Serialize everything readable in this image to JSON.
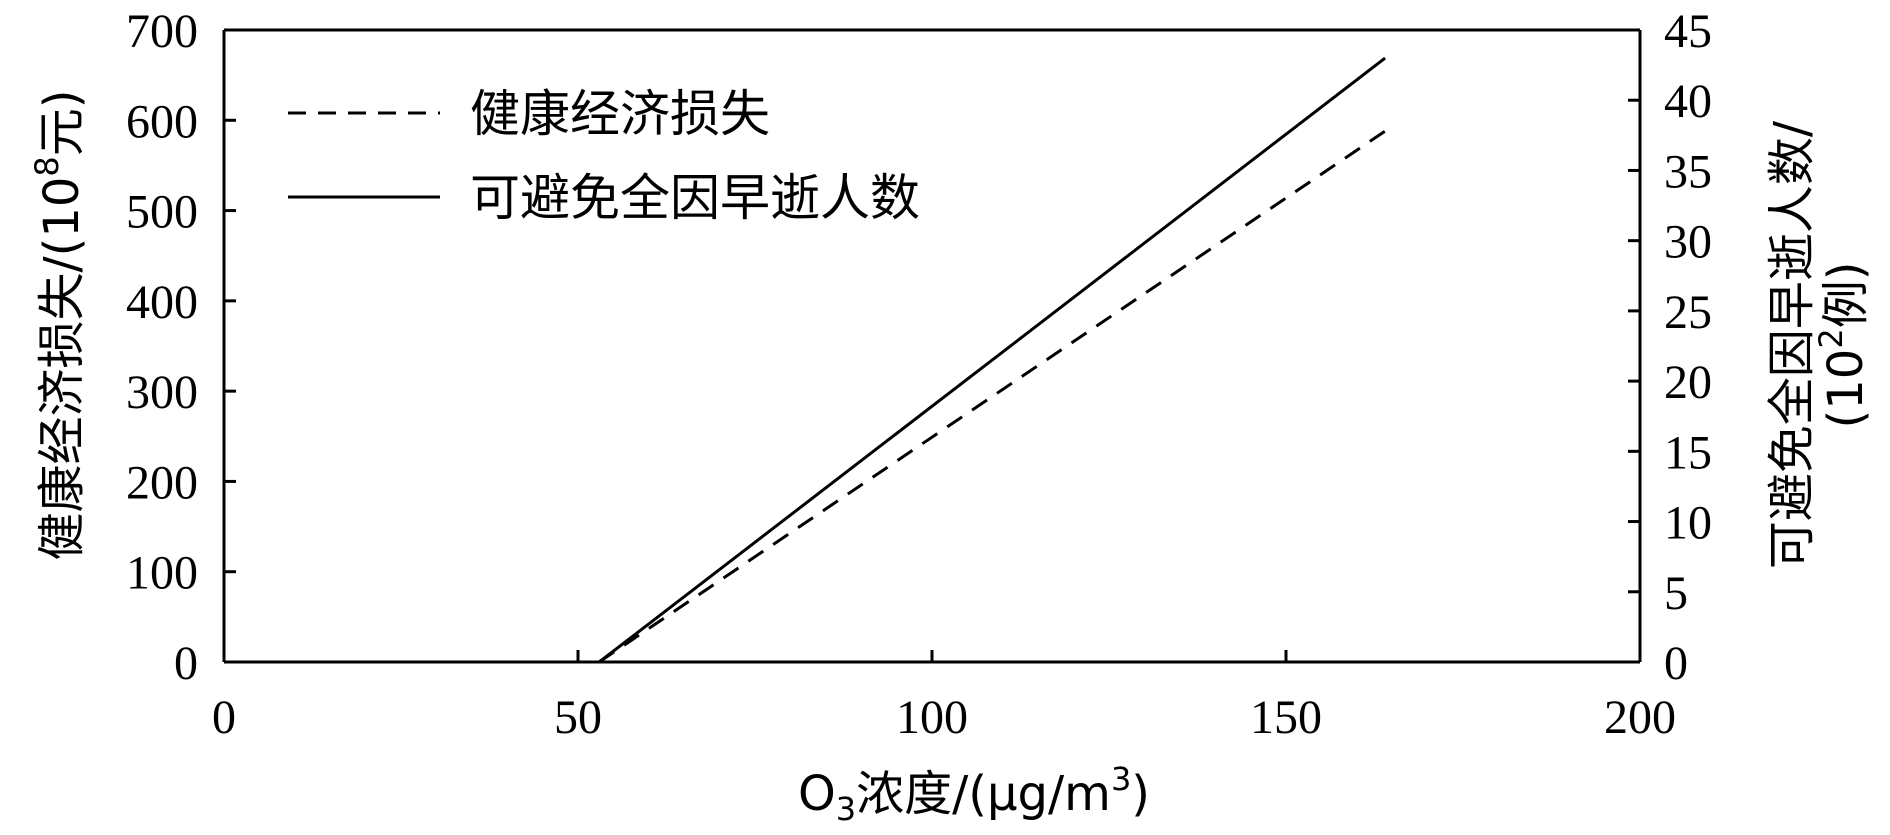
{
  "chart_data": {
    "type": "line",
    "x_axis": {
      "label_main": "O",
      "label_sub": "3",
      "label_mid": "浓度/(μg/m",
      "label_sup": "3",
      "label_end": ")",
      "min": 0,
      "max": 200,
      "ticks": [
        0,
        50,
        100,
        150,
        200
      ]
    },
    "y_left": {
      "label_main": "健康经济损失/(10",
      "label_sup": "8",
      "label_end": "元)",
      "min": 0,
      "max": 700,
      "ticks": [
        0,
        100,
        200,
        300,
        400,
        500,
        600,
        700
      ]
    },
    "y_right": {
      "label_line1": "可避免全因早逝人数/",
      "label_line2_main": "(10",
      "label_line2_sup": "2",
      "label_line2_end": "例)",
      "min": 0,
      "max": 45,
      "ticks": [
        0,
        5,
        10,
        15,
        20,
        25,
        30,
        35,
        40,
        45
      ]
    },
    "series": [
      {
        "name": "健康经济损失",
        "axis": "left",
        "style": "dashed",
        "x": [
          53,
          164
        ],
        "y": [
          0,
          588
        ]
      },
      {
        "name": "可避免全因早逝人数",
        "axis": "right",
        "style": "solid",
        "x": [
          53,
          164
        ],
        "y": [
          0,
          43
        ]
      }
    ],
    "legend_position": "top-left",
    "grid": false
  }
}
